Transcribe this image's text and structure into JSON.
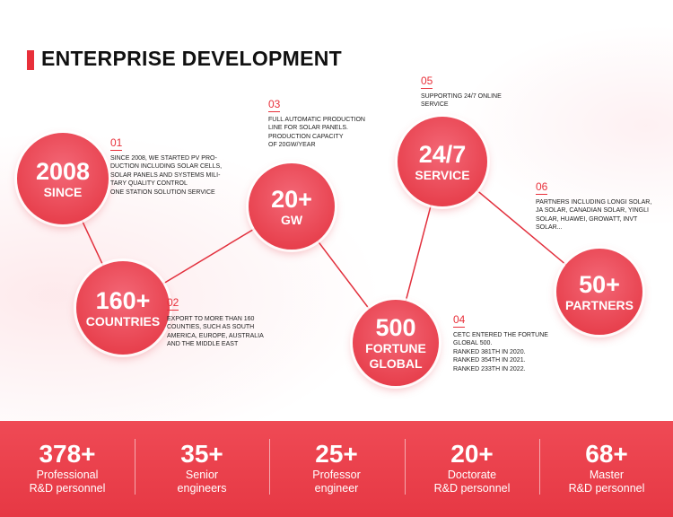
{
  "header": {
    "title": "ENTERPRISE DEVELOPMENT"
  },
  "milestones": [
    {
      "num": "01",
      "big": "2008",
      "small": "SINCE",
      "desc": [
        "SINCE 2008, WE STARTED PV PRO-",
        "DUCTION INCLUDING SOLAR CELLS,",
        "SOLAR PANELS AND SYSTEMS MILI-",
        "TARY QUALITY CONTROL",
        "ONE STATION SOLUTION SERVICE"
      ]
    },
    {
      "num": "02",
      "big": "160+",
      "small": "COUNTRIES",
      "desc": [
        "EXPORT TO MORE THAN 160",
        "COUNTIES, SUCH AS SOUTH",
        "AMERICA, EUROPE, AUSTRALIA",
        "AND THE MIDDLE EAST"
      ]
    },
    {
      "num": "03",
      "big": "20+",
      "small": "GW",
      "desc": [
        "FULL AUTOMATIC PRODUCTION",
        "LINE FOR SOLAR PANELS.",
        " PRODUCTION CAPACITY",
        "OF 20GW/YEAR"
      ]
    },
    {
      "num": "04",
      "big": "500",
      "small": "FORTUNE",
      "small2": "GLOBAL",
      "desc": [
        "CETC ENTERED THE FORTUNE",
        "GLOBAL 500.",
        "RANKED 381TH IN 2020.",
        "RANKED 354TH IN 2021.",
        "RANKED 233TH IN 2022."
      ]
    },
    {
      "num": "05",
      "big": "24/7",
      "small": "SERVICE",
      "desc": [
        "SUPPORTING 24/7 ONLINE",
        "SERVICE"
      ]
    },
    {
      "num": "06",
      "big": "50+",
      "small": "PARTNERS",
      "desc": [
        "PARTNERS INCLUDING LONGI SOLAR,",
        "JA SOLAR, CANADIAN SOLAR, YINGLI",
        "SOLAR, HUAWEI, GROWATT, INVT",
        "SOLAR..."
      ]
    }
  ],
  "stats": [
    {
      "value": "378+",
      "line1": "Professional",
      "line2": "R&D personnel"
    },
    {
      "value": "35+",
      "line1": "Senior",
      "line2": "engineers"
    },
    {
      "value": "25+",
      "line1": "Professor",
      "line2": "engineer"
    },
    {
      "value": "20+",
      "line1": "Doctorate",
      "line2": "R&D personnel"
    },
    {
      "value": "68+",
      "line1": "Master",
      "line2": "R&D personnel"
    }
  ],
  "colors": {
    "accent": "#e8303a",
    "circle": "#e8424f",
    "bottom_band": "#e63844"
  }
}
